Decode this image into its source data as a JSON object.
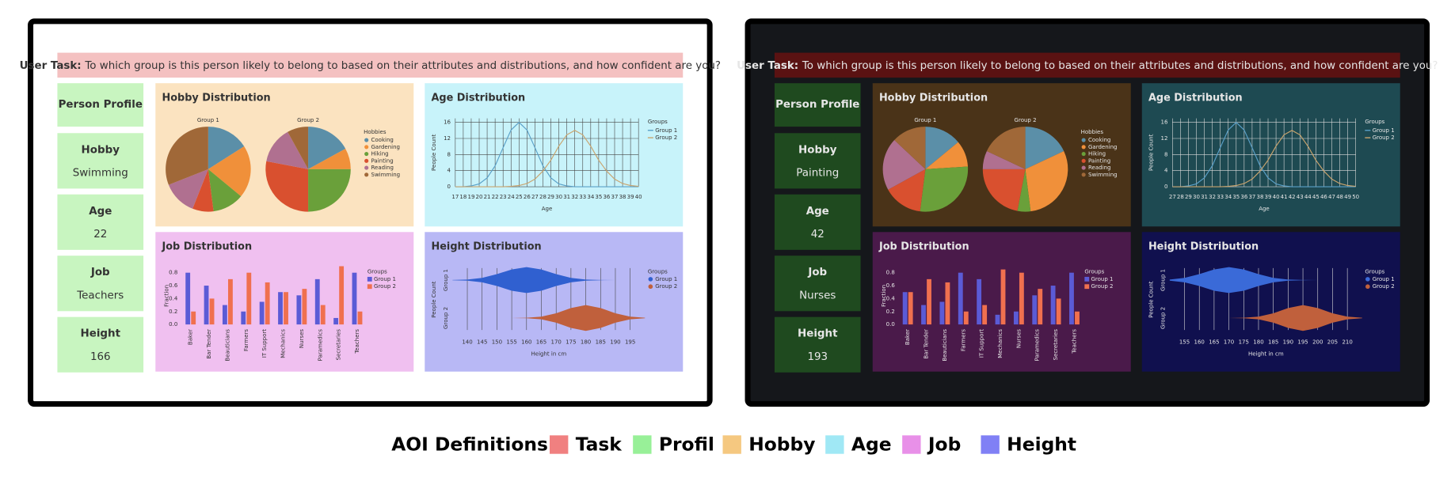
{
  "panels": [
    {
      "task": {
        "label": "User Task:",
        "text": "To which group is this person likely to belong to based on their attributes and distributions, and how confident are you?"
      },
      "profile": {
        "title": "Person Profile",
        "fields": [
          {
            "label": "Hobby",
            "value": "Swimming"
          },
          {
            "label": "Age",
            "value": 22
          },
          {
            "label": "Job",
            "value": "Teachers"
          },
          {
            "label": "Height",
            "value": 166
          }
        ]
      },
      "hobby": {
        "title": "Hobby Distribution",
        "legend_title": "Hobbies",
        "categories": [
          "Cooking",
          "Gardening",
          "Hiking",
          "Painting",
          "Reading",
          "Swimming"
        ],
        "colors": [
          "#5b8fa8",
          "#f0903a",
          "#6aa03a",
          "#d9502f",
          "#b07090",
          "#a06838"
        ],
        "groups": [
          {
            "name": "Group 1",
            "values": [
              16,
              20,
              12,
              8,
              13,
              31
            ]
          },
          {
            "name": "Group 2",
            "values": [
              17,
              8,
              25,
              28,
              14,
              8
            ]
          }
        ]
      },
      "age": {
        "title": "Age Distribution",
        "x_label": "Age",
        "y_label": "People Count",
        "legend_title": "Groups",
        "x": [
          17,
          18,
          19,
          20,
          21,
          22,
          23,
          24,
          25,
          26,
          27,
          28,
          29,
          30,
          31,
          32,
          33,
          34,
          35,
          36,
          37,
          38,
          39,
          40
        ],
        "xlim": [
          17,
          40
        ],
        "xticks": [
          17,
          18,
          19,
          20,
          21,
          22,
          23,
          24,
          25,
          26,
          27,
          28,
          29,
          30,
          31,
          32,
          33,
          34,
          35,
          36,
          37,
          38,
          39,
          40
        ],
        "ylim": [
          0,
          17
        ],
        "yticks": [
          0,
          4,
          8,
          12,
          16
        ],
        "series": [
          {
            "name": "Group 1",
            "color": "#5aa0c8",
            "values": [
              0,
              0,
              0.2,
              0.7,
              2.2,
              5.2,
              9.7,
              14.1,
              16,
              14.1,
              9.7,
              5.2,
              2.2,
              0.7,
              0.2,
              0,
              0,
              0,
              0,
              0,
              0,
              0,
              0,
              0
            ]
          },
          {
            "name": "Group 2",
            "color": "#c9a46e",
            "values": [
              0,
              0,
              0,
              0,
              0,
              0,
              0,
              0.1,
              0.3,
              0.8,
              1.9,
              3.9,
              6.6,
              10.1,
              12.9,
              14,
              12.9,
              10.1,
              6.6,
              3.9,
              1.9,
              0.8,
              0.3,
              0.1
            ]
          }
        ]
      },
      "job": {
        "title": "Job Distribution",
        "y_label": "Fraction",
        "legend_title": "Groups",
        "categories": [
          "Baker",
          "Bar Tender",
          "Beauticians",
          "Farmers",
          "IT Support",
          "Mechanics",
          "Nurses",
          "Paramedics",
          "Secretaries",
          "Teachers"
        ],
        "ylim": [
          0,
          0.9
        ],
        "yticks": [
          {
            "value": 0,
            "label": "0.0"
          },
          0.2,
          0.4,
          0.6,
          0.8
        ],
        "series": [
          {
            "name": "Group 1",
            "color": "#5b5bd6",
            "values": [
              0.8,
              0.6,
              0.3,
              0.2,
              0.35,
              0.5,
              0.45,
              0.7,
              0.1,
              0.8
            ]
          },
          {
            "name": "Group 2",
            "color": "#f0704f",
            "values": [
              0.2,
              0.4,
              0.7,
              0.8,
              0.65,
              0.5,
              0.55,
              0.3,
              0.9,
              0.2
            ]
          }
        ]
      },
      "height": {
        "title": "Height Distribution",
        "x_label": "Height in cm",
        "y_label": "People Count",
        "legend_title": "Groups",
        "x": [
          135,
          140,
          145,
          150,
          155,
          160,
          165,
          170,
          175,
          180,
          185,
          190,
          195,
          200
        ],
        "xlim": [
          135,
          200
        ],
        "xticks": [
          140,
          145,
          150,
          155,
          160,
          165,
          170,
          175,
          180,
          185,
          190,
          195
        ],
        "series": [
          {
            "name": "Group 1",
            "color": "#3060d0",
            "values": [
              0.01,
              0.04,
              0.17,
              0.46,
              0.82,
              1,
              0.82,
              0.46,
              0.17,
              0.04,
              0.01,
              0,
              0,
              0
            ]
          },
          {
            "name": "Group 2",
            "color": "#c0603c",
            "values": [
              0,
              0,
              0,
              0,
              0,
              0.02,
              0.1,
              0.36,
              0.77,
              1,
              0.77,
              0.36,
              0.1,
              0.02
            ]
          }
        ]
      }
    },
    {
      "task": {
        "label": "User Task:",
        "text": "To which group is this person likely to belong to based on their attributes and distributions, and how confident are you?"
      },
      "profile": {
        "title": "Person Profile",
        "fields": [
          {
            "label": "Hobby",
            "value": "Painting"
          },
          {
            "label": "Age",
            "value": 42
          },
          {
            "label": "Job",
            "value": "Nurses"
          },
          {
            "label": "Height",
            "value": 193
          }
        ]
      },
      "hobby": {
        "title": "Hobby Distribution",
        "legend_title": "Hobbies",
        "categories": [
          "Cooking",
          "Gardening",
          "Hiking",
          "Painting",
          "Reading",
          "Swimming"
        ],
        "colors": [
          "#5b8fa8",
          "#f0903a",
          "#6aa03a",
          "#d9502f",
          "#b07090",
          "#a06838"
        ],
        "groups": [
          {
            "name": "Group 1",
            "values": [
              14,
              10,
              28,
              15,
              20,
              13
            ]
          },
          {
            "name": "Group 2",
            "values": [
              18,
              30,
              5,
              22,
              7,
              18
            ]
          }
        ]
      },
      "age": {
        "title": "Age Distribution",
        "x_label": "Age",
        "y_label": "People Count",
        "legend_title": "Groups",
        "x": [
          27,
          28,
          29,
          30,
          31,
          32,
          33,
          34,
          35,
          36,
          37,
          38,
          39,
          40,
          41,
          42,
          43,
          44,
          45,
          46,
          47,
          48,
          49,
          50
        ],
        "xlim": [
          27,
          50
        ],
        "xticks": [
          27,
          28,
          29,
          30,
          31,
          32,
          33,
          34,
          35,
          36,
          37,
          38,
          39,
          40,
          41,
          42,
          43,
          44,
          45,
          46,
          47,
          48,
          49,
          50
        ],
        "ylim": [
          0,
          17
        ],
        "yticks": [
          0,
          4,
          8,
          12,
          16
        ],
        "series": [
          {
            "name": "Group 1",
            "color": "#5aa0c8",
            "values": [
              0,
              0,
              0.2,
              0.7,
              2.2,
              5.2,
              9.7,
              14.1,
              16,
              14.1,
              9.7,
              5.2,
              2.2,
              0.7,
              0.2,
              0,
              0,
              0,
              0,
              0,
              0,
              0,
              0,
              0
            ]
          },
          {
            "name": "Group 2",
            "color": "#c9a46e",
            "values": [
              0,
              0,
              0,
              0,
              0,
              0,
              0,
              0.1,
              0.3,
              0.8,
              1.9,
              3.9,
              6.6,
              10.1,
              12.9,
              14,
              12.9,
              10.1,
              6.6,
              3.9,
              1.9,
              0.8,
              0.3,
              0.1
            ]
          }
        ]
      },
      "job": {
        "title": "Job Distribution",
        "y_label": "Fraction",
        "legend_title": "Groups",
        "categories": [
          "Baker",
          "Bar Tender",
          "Beauticians",
          "Farmers",
          "IT Support",
          "Mechanics",
          "Nurses",
          "Paramedics",
          "Secretaries",
          "Teachers"
        ],
        "ylim": [
          0,
          0.9
        ],
        "yticks": [
          {
            "value": 0,
            "label": "0.0"
          },
          0.2,
          0.4,
          0.6,
          0.8
        ],
        "series": [
          {
            "name": "Group 1",
            "color": "#5b5bd6",
            "values": [
              0.5,
              0.3,
              0.35,
              0.8,
              0.7,
              0.15,
              0.2,
              0.45,
              0.6,
              0.8
            ]
          },
          {
            "name": "Group 2",
            "color": "#f0704f",
            "values": [
              0.5,
              0.7,
              0.65,
              0.2,
              0.3,
              0.85,
              0.8,
              0.55,
              0.4,
              0.2
            ]
          }
        ]
      },
      "height": {
        "title": "Height Distribution",
        "x_label": "Height in cm",
        "y_label": "People Count",
        "legend_title": "Groups",
        "x": [
          150,
          155,
          160,
          165,
          170,
          175,
          180,
          185,
          190,
          195,
          200,
          205,
          210,
          215
        ],
        "xlim": [
          150,
          215
        ],
        "xticks": [
          155,
          160,
          165,
          170,
          175,
          180,
          185,
          190,
          195,
          200,
          205,
          210
        ],
        "series": [
          {
            "name": "Group 1",
            "color": "#3a6ad8",
            "values": [
              0.04,
              0.17,
              0.46,
              0.82,
              1,
              0.82,
              0.46,
              0.17,
              0.04,
              0.01,
              0,
              0,
              0,
              0
            ]
          },
          {
            "name": "Group 2",
            "color": "#c0603c",
            "values": [
              0,
              0,
              0,
              0,
              0,
              0.02,
              0.1,
              0.36,
              0.77,
              1,
              0.77,
              0.36,
              0.1,
              0.02
            ]
          }
        ]
      }
    }
  ],
  "aoi": {
    "title": "AOI Definitions:",
    "items": [
      {
        "label": "Task",
        "color": "#f08080"
      },
      {
        "label": "Profil",
        "color": "#98f098"
      },
      {
        "label": "Hobby",
        "color": "#f5c880"
      },
      {
        "label": "Age",
        "color": "#a0e8f5"
      },
      {
        "label": "Job",
        "color": "#e890e8"
      },
      {
        "label": "Height",
        "color": "#8080f5"
      }
    ]
  }
}
